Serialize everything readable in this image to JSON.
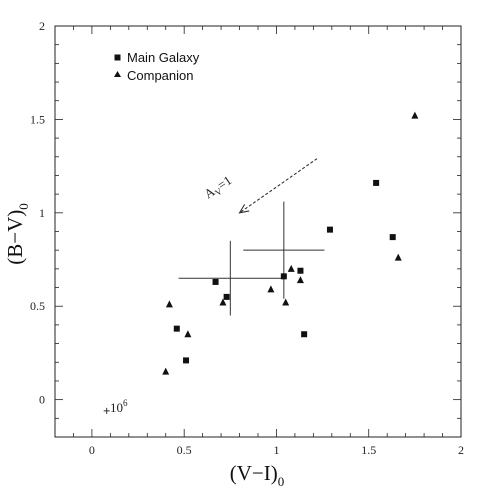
{
  "chart_data": {
    "type": "scatter",
    "xlabel": "(V−I)",
    "xlabel_sub": "0",
    "ylabel": "(B−V)",
    "ylabel_sub": "0",
    "xlim": [
      -0.2,
      2.0
    ],
    "ylim": [
      -0.2,
      2.0
    ],
    "x_ticks": [
      0,
      0.5,
      1,
      1.5,
      2
    ],
    "x_tick_labels": [
      "0",
      "0.5",
      "1",
      "1.5",
      "2"
    ],
    "y_ticks": [
      0,
      0.5,
      1,
      1.5,
      2
    ],
    "y_tick_labels": [
      "0",
      "0.5",
      "1",
      "1.5",
      "2"
    ],
    "legend_position": "top-left",
    "grid": false,
    "series": [
      {
        "name": "Main Galaxy",
        "marker": "square",
        "points": [
          {
            "x": 0.46,
            "y": 0.38
          },
          {
            "x": 0.51,
            "y": 0.21
          },
          {
            "x": 0.67,
            "y": 0.63
          },
          {
            "x": 0.73,
            "y": 0.55
          },
          {
            "x": 1.04,
            "y": 0.66
          },
          {
            "x": 1.13,
            "y": 0.69
          },
          {
            "x": 1.15,
            "y": 0.35
          },
          {
            "x": 1.29,
            "y": 0.91
          },
          {
            "x": 1.54,
            "y": 1.16
          },
          {
            "x": 1.63,
            "y": 0.87
          }
        ]
      },
      {
        "name": "Companion",
        "marker": "triangle",
        "points": [
          {
            "x": 0.4,
            "y": 0.15
          },
          {
            "x": 0.42,
            "y": 0.51
          },
          {
            "x": 0.52,
            "y": 0.35
          },
          {
            "x": 0.71,
            "y": 0.52
          },
          {
            "x": 0.97,
            "y": 0.59
          },
          {
            "x": 1.05,
            "y": 0.52
          },
          {
            "x": 1.08,
            "y": 0.7
          },
          {
            "x": 1.13,
            "y": 0.64
          },
          {
            "x": 1.66,
            "y": 0.76
          },
          {
            "x": 1.75,
            "y": 1.52
          }
        ]
      }
    ],
    "error_crosses": [
      {
        "x": 0.75,
        "y": 0.65,
        "xerr": 0.28,
        "yerr": 0.2
      },
      {
        "x": 1.04,
        "y": 0.8,
        "xerr": 0.22,
        "yerr": 0.26
      }
    ],
    "reddening_vector": {
      "label": "A",
      "label_sub": "V",
      "label_suffix": "=1",
      "from": [
        1.22,
        1.29
      ],
      "to": [
        0.8,
        1.0
      ]
    },
    "age_marker": {
      "x": 0.08,
      "y": -0.06,
      "label": "10",
      "label_sup": "6"
    }
  }
}
